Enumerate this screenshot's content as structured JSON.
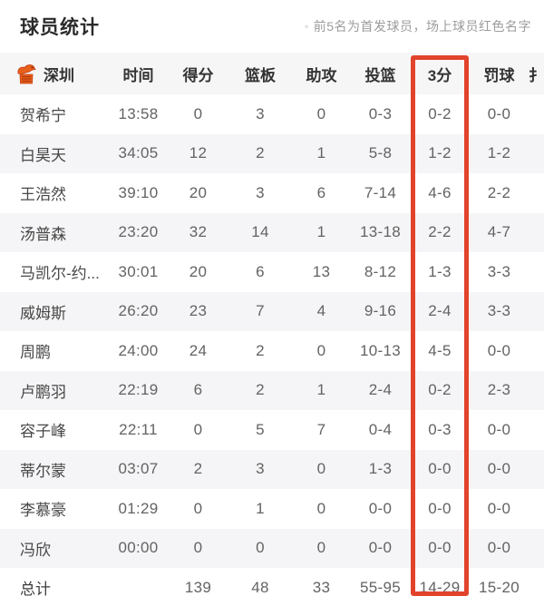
{
  "header": {
    "title": "球员统计",
    "note_bullet": "◦",
    "note": "前5名为首发球员，场上球员红色名字"
  },
  "table": {
    "team": "深圳",
    "team_logo_icon": "leopard-emblem-icon",
    "columns": [
      "时间",
      "得分",
      "篮板",
      "助攻",
      "投篮",
      "3分",
      "罚球",
      "扌"
    ],
    "highlighted_column": "3分",
    "highlight_color": "#e2432c",
    "logo_color": "#e8601c",
    "total_label": "总计",
    "rows": [
      [
        "贺希宁",
        "13:58",
        "0",
        "3",
        "0",
        "0-3",
        "0-2",
        "0-0"
      ],
      [
        "白昊天",
        "34:05",
        "12",
        "2",
        "1",
        "5-8",
        "1-2",
        "1-2"
      ],
      [
        "王浩然",
        "39:10",
        "20",
        "3",
        "6",
        "7-14",
        "4-6",
        "2-2"
      ],
      [
        "汤普森",
        "23:20",
        "32",
        "14",
        "1",
        "13-18",
        "2-2",
        "4-7"
      ],
      [
        "马凯尔-约...",
        "30:01",
        "20",
        "6",
        "13",
        "8-12",
        "1-3",
        "3-3"
      ],
      [
        "威姆斯",
        "26:20",
        "23",
        "7",
        "4",
        "9-16",
        "2-4",
        "3-3"
      ],
      [
        "周鹏",
        "24:00",
        "24",
        "2",
        "0",
        "10-13",
        "4-5",
        "0-0"
      ],
      [
        "卢鹏羽",
        "22:19",
        "6",
        "2",
        "1",
        "2-4",
        "0-2",
        "2-3"
      ],
      [
        "容子峰",
        "22:11",
        "0",
        "5",
        "7",
        "0-4",
        "0-3",
        "0-0"
      ],
      [
        "蒂尔蒙",
        "03:07",
        "2",
        "3",
        "0",
        "1-3",
        "0-0",
        "0-0"
      ],
      [
        "李慕豪",
        "01:29",
        "0",
        "1",
        "0",
        "0-0",
        "0-0",
        "0-0"
      ],
      [
        "冯欣",
        "00:00",
        "0",
        "0",
        "0",
        "0-0",
        "0-0",
        "0-0"
      ],
      [
        "总计",
        "",
        "139",
        "48",
        "33",
        "55-95",
        "14-29",
        "15-20"
      ]
    ]
  }
}
